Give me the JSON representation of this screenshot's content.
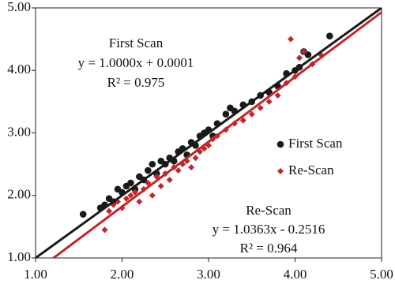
{
  "chart_data": {
    "type": "scatter",
    "xlim": [
      1,
      5
    ],
    "ylim": [
      1,
      5
    ],
    "xticks": [
      {
        "value": 1,
        "label": "1.00"
      },
      {
        "value": 2,
        "label": "2.00"
      },
      {
        "value": 3,
        "label": "3.00"
      },
      {
        "value": 4,
        "label": "4.00"
      },
      {
        "value": 5,
        "label": "5.00"
      }
    ],
    "yticks": [
      {
        "value": 1,
        "label": "1.00"
      },
      {
        "value": 2,
        "label": "2.00"
      },
      {
        "value": 3,
        "label": "3.00"
      },
      {
        "value": 4,
        "label": "4.00"
      },
      {
        "value": 5,
        "label": "5.00"
      }
    ],
    "legend": "right",
    "series": [
      {
        "name": "First Scan",
        "color": "#1a1a1a",
        "marker": "circle",
        "x": [
          1.55,
          1.75,
          1.8,
          1.85,
          1.9,
          1.95,
          2.0,
          2.05,
          2.1,
          2.15,
          2.2,
          2.25,
          2.3,
          2.35,
          2.4,
          2.45,
          2.5,
          2.55,
          2.6,
          2.65,
          2.7,
          2.75,
          2.8,
          2.85,
          2.9,
          2.95,
          3.0,
          3.05,
          3.1,
          3.2,
          3.25,
          3.3,
          3.4,
          3.5,
          3.6,
          3.7,
          3.8,
          3.9,
          4.0,
          4.05,
          4.1,
          4.15,
          4.4
        ],
        "values": [
          1.7,
          1.8,
          1.85,
          1.95,
          1.9,
          2.1,
          2.05,
          2.15,
          2.2,
          2.1,
          2.3,
          2.25,
          2.4,
          2.5,
          2.35,
          2.55,
          2.5,
          2.6,
          2.55,
          2.7,
          2.75,
          2.65,
          2.85,
          2.8,
          2.95,
          3.0,
          3.05,
          2.95,
          3.15,
          3.3,
          3.4,
          3.35,
          3.45,
          3.5,
          3.6,
          3.65,
          3.75,
          3.95,
          4.0,
          4.05,
          4.3,
          4.25,
          4.55
        ],
        "trendline": {
          "slope": 1.0,
          "intercept": 0.0001,
          "label": "y = 1.0000x + 0.0001",
          "r2": 0.975,
          "r2_label": "R² = 0.975"
        }
      },
      {
        "name": "Re-Scan",
        "color": "#c0272d",
        "marker": "diamond",
        "x": [
          1.8,
          1.85,
          1.9,
          1.95,
          2.0,
          2.05,
          2.1,
          2.15,
          2.2,
          2.25,
          2.3,
          2.35,
          2.4,
          2.45,
          2.5,
          2.55,
          2.6,
          2.65,
          2.7,
          2.75,
          2.8,
          2.85,
          2.9,
          2.95,
          3.0,
          3.05,
          3.1,
          3.2,
          3.3,
          3.4,
          3.5,
          3.6,
          3.7,
          3.8,
          3.9,
          3.95,
          4.0,
          4.05,
          4.1,
          4.2,
          4.3
        ],
        "values": [
          1.45,
          1.75,
          1.85,
          1.9,
          1.8,
          1.95,
          2.0,
          2.05,
          1.9,
          2.1,
          2.2,
          2.0,
          2.3,
          2.15,
          2.35,
          2.25,
          2.45,
          2.4,
          2.5,
          2.55,
          2.45,
          2.6,
          2.7,
          2.75,
          2.8,
          2.9,
          2.95,
          3.05,
          3.15,
          3.2,
          3.3,
          3.4,
          3.5,
          3.6,
          3.8,
          4.5,
          3.9,
          4.2,
          4.3,
          4.1,
          4.25
        ],
        "trendline": {
          "slope": 1.0363,
          "intercept": -0.2516,
          "label": "y = 1.0363x - 0.2516",
          "r2": 0.964,
          "r2_label": "R² = 0.964"
        }
      }
    ]
  }
}
